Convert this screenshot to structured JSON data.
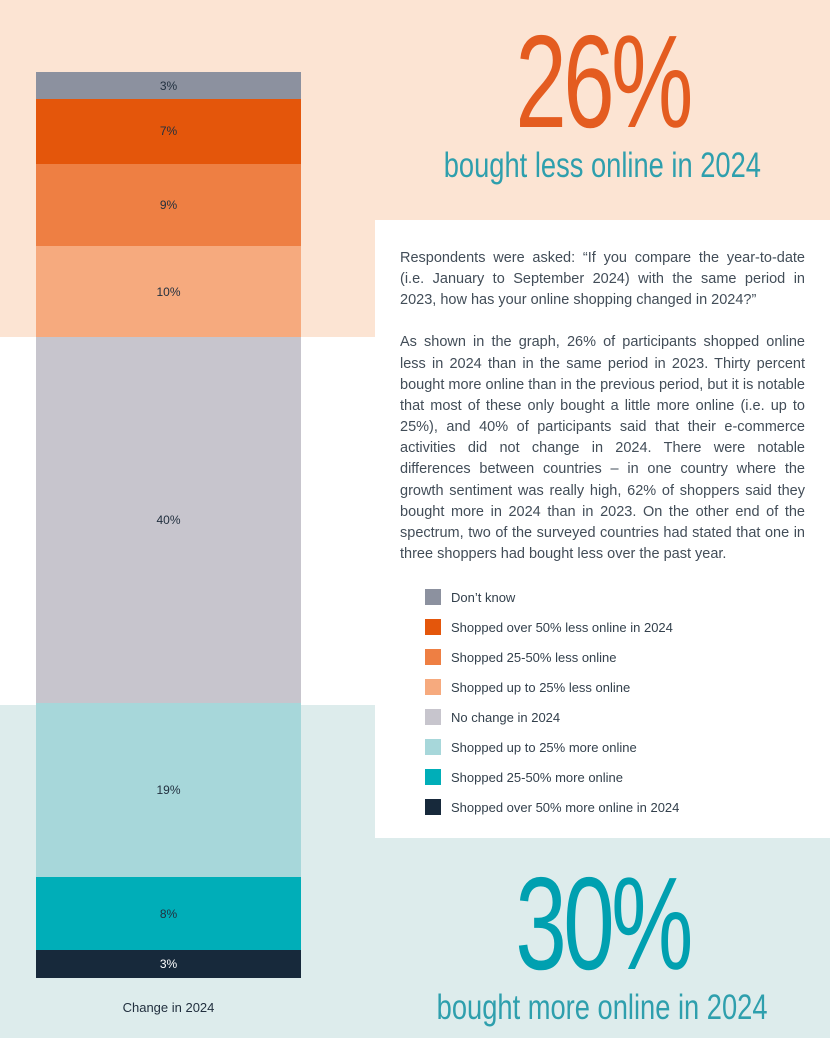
{
  "headline_top": {
    "value": "26%",
    "subtitle": "bought less online in 2024"
  },
  "headline_bottom": {
    "value": "30%",
    "subtitle": "bought more online in 2024"
  },
  "panel": {
    "paragraph_question": "Respondents were asked: “If you compare the year-to-date (i.e. January to September 2024) with the same period in 2023, how has your online shopping changed in 2024?”",
    "paragraph_analysis": "As shown in the graph, 26% of participants shopped online less in 2024 than in the same period in 2023. Thirty percent bought more online than in the previous period, but it is notable that most of these only bought a little more online (i.e. up to 25%), and 40% of participants said that their e-commerce activities did not change in 2024. There were notable differences between countries – in one country where the growth sentiment was really high, 62% of shoppers said they bought more in 2024 than in 2023. On the other end of the spectrum, two of the surveyed countries had stated that one in three shoppers had bought less over the past year."
  },
  "chart_data": {
    "type": "bar",
    "stacked": true,
    "orientation": "vertical",
    "title": "Change in 2024",
    "value_suffix": "%",
    "segments": [
      {
        "label": "Don’t know",
        "value": 3,
        "color": "#8c919f",
        "text_color": "#22303f"
      },
      {
        "label": "Shopped over 50% less online in 2024",
        "value": 7,
        "color": "#e4560b",
        "text_color": "#22303f"
      },
      {
        "label": "Shopped 25-50% less online",
        "value": 9,
        "color": "#ee7f43",
        "text_color": "#22303f"
      },
      {
        "label": "Shopped up to 25% less online",
        "value": 10,
        "color": "#f6aa7e",
        "text_color": "#22303f"
      },
      {
        "label": "No change in 2024",
        "value": 40,
        "color": "#c7c5cd",
        "text_color": "#22303f"
      },
      {
        "label": "Shopped up to 25% more online",
        "value": 19,
        "color": "#a7d7da",
        "text_color": "#22303f"
      },
      {
        "label": "Shopped 25-50% more online",
        "value": 8,
        "color": "#00aeb8",
        "text_color": "#22303f"
      },
      {
        "label": "Shopped over 50% more online in 2024",
        "value": 3,
        "color": "#17293b",
        "text_color": "#ffffff"
      }
    ]
  },
  "bar_caption": "Change in 2024",
  "colors": {
    "peach_background": "#fce4d3",
    "teal_background": "#ddecec",
    "panel_background": "#ffffff",
    "orange_headline": "#e45c20",
    "teal_headline": "#00a0b0",
    "subtitle_teal": "#2e9fad",
    "body_text": "#424d58"
  }
}
